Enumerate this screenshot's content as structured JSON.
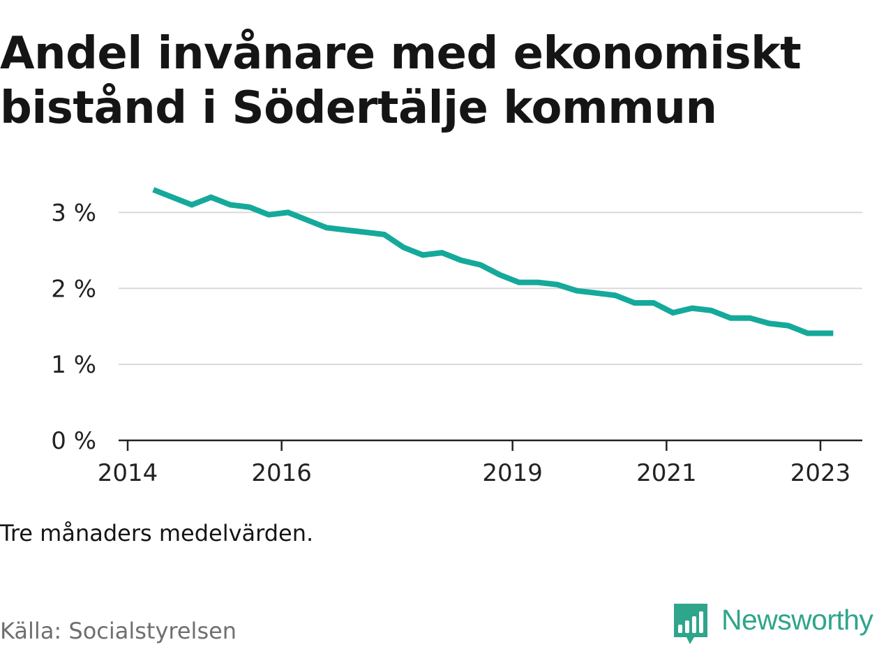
{
  "title": "Andel invånare med ekonomiskt bistånd i Södertälje kommun",
  "note": "Tre månaders medelvärden.",
  "source": "Källa: Socialstyrelsen",
  "brand": {
    "name": "Newsworthy",
    "logo_icon": "newsworthy-chart-logo-icon",
    "color": "#2fa58b"
  },
  "colors": {
    "line": "#15a99b",
    "grid": "#d9d9d9",
    "axis": "#222222"
  },
  "chart_data": {
    "type": "line",
    "title": "Andel invånare med ekonomiskt bistånd i Södertälje kommun",
    "xlabel": "",
    "ylabel": "",
    "ylim": [
      0,
      3.5
    ],
    "yticks": [
      0,
      1,
      2,
      3
    ],
    "ytick_labels": [
      "0 %",
      "1 %",
      "2 %",
      "3 %"
    ],
    "xticks": [
      2014,
      2016,
      2019,
      2021,
      2023
    ],
    "xtick_labels": [
      "2014",
      "2016",
      "2019",
      "2021",
      "2023"
    ],
    "grid": true,
    "legend": "none",
    "series": [
      {
        "x": [
          "2014-05",
          "2014-08",
          "2014-11",
          "2015-02",
          "2015-05",
          "2015-08",
          "2015-11",
          "2016-02",
          "2016-05",
          "2016-08",
          "2016-11",
          "2017-02",
          "2017-05",
          "2017-08",
          "2017-11",
          "2018-02",
          "2018-05",
          "2018-08",
          "2018-11",
          "2019-02",
          "2019-05",
          "2019-08",
          "2019-11",
          "2020-02",
          "2020-05",
          "2020-08",
          "2020-11",
          "2021-02",
          "2021-05",
          "2021-08",
          "2021-11",
          "2022-02",
          "2022-05",
          "2022-08",
          "2022-11",
          "2023-02",
          "2023-03"
        ],
        "values": [
          3.3,
          3.2,
          3.1,
          3.2,
          3.1,
          3.07,
          2.97,
          3.0,
          2.9,
          2.8,
          2.77,
          2.74,
          2.71,
          2.54,
          2.44,
          2.47,
          2.37,
          2.31,
          2.18,
          2.08,
          2.08,
          2.05,
          1.97,
          1.94,
          1.91,
          1.81,
          1.81,
          1.68,
          1.74,
          1.71,
          1.61,
          1.61,
          1.54,
          1.51,
          1.41,
          1.41,
          1.41
        ]
      }
    ]
  }
}
